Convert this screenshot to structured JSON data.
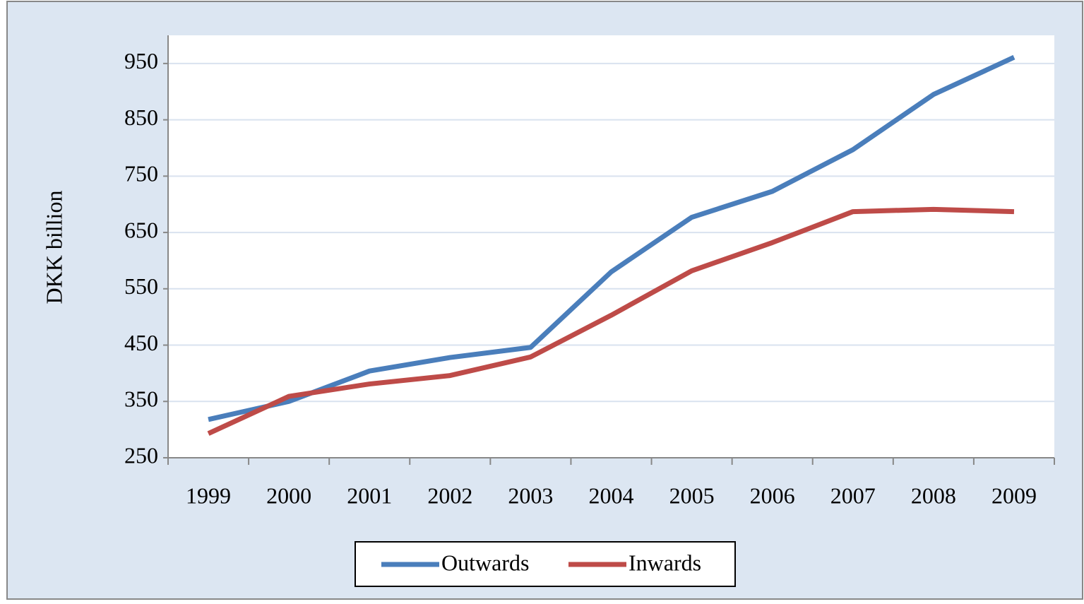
{
  "chart_data": {
    "type": "line",
    "y_label": "DKK billion",
    "categories": [
      "1999",
      "2000",
      "2001",
      "2002",
      "2003",
      "2004",
      "2005",
      "2006",
      "2007",
      "2008",
      "2009"
    ],
    "series": [
      {
        "name": "Outwards",
        "color": "#4a7ebb",
        "values": [
          318,
          350,
          404,
          428,
          446,
          580,
          677,
          723,
          797,
          895,
          961
        ]
      },
      {
        "name": "Inwards",
        "color": "#be4b48",
        "values": [
          293,
          359,
          381,
          396,
          429,
          503,
          582,
          632,
          687,
          691,
          687
        ]
      }
    ],
    "ylim": [
      250,
      1000
    ],
    "yticks": [
      250,
      350,
      450,
      550,
      650,
      750,
      850,
      950
    ],
    "grid": true,
    "legend": "bottom"
  }
}
